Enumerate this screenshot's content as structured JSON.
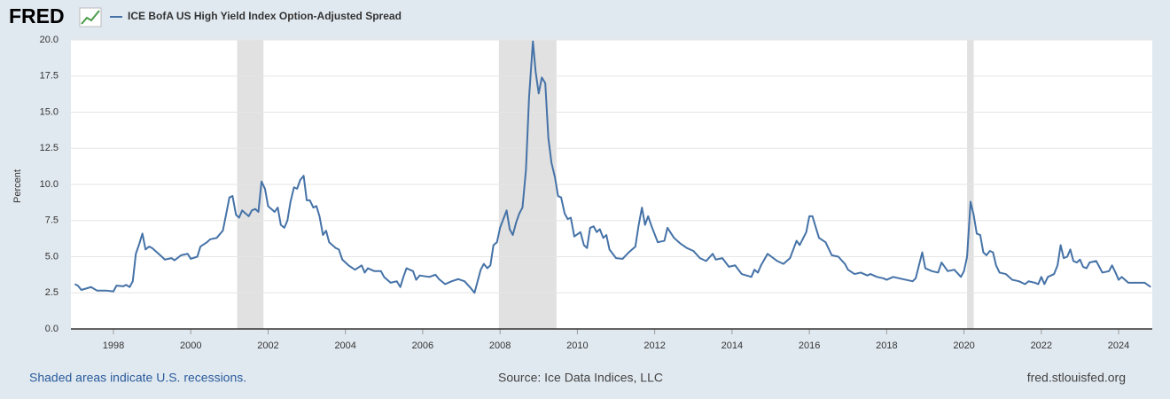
{
  "logo": "FRED",
  "footer": {
    "note": "Shaded areas indicate U.S. recessions.",
    "source": "Source: Ice Data Indices, LLC",
    "site": "fred.stlouisfed.org"
  },
  "chart_data": {
    "type": "line",
    "y_label": "Percent",
    "series": [
      {
        "name": "ICE BofA US High Yield Index Option-Adjusted Spread",
        "color": "#4572a7",
        "x": [
          1997.0,
          1997.08,
          1997.17,
          1997.42,
          1997.58,
          1997.83,
          1998.0,
          1998.08,
          1998.25,
          1998.33,
          1998.42,
          1998.5,
          1998.58,
          1998.67,
          1998.75,
          1998.83,
          1998.92,
          1999.0,
          1999.17,
          1999.33,
          1999.5,
          1999.58,
          1999.75,
          1999.92,
          2000.0,
          2000.17,
          2000.25,
          2000.42,
          2000.5,
          2000.67,
          2000.83,
          2000.92,
          2001.0,
          2001.08,
          2001.17,
          2001.25,
          2001.33,
          2001.5,
          2001.58,
          2001.67,
          2001.75,
          2001.83,
          2001.92,
          2002.0,
          2002.17,
          2002.25,
          2002.33,
          2002.42,
          2002.5,
          2002.58,
          2002.67,
          2002.75,
          2002.83,
          2002.92,
          2003.0,
          2003.08,
          2003.17,
          2003.25,
          2003.33,
          2003.42,
          2003.5,
          2003.58,
          2003.75,
          2003.83,
          2003.92,
          2004.08,
          2004.25,
          2004.42,
          2004.5,
          2004.58,
          2004.75,
          2004.92,
          2005.0,
          2005.17,
          2005.33,
          2005.42,
          2005.5,
          2005.58,
          2005.75,
          2005.83,
          2005.92,
          2006.17,
          2006.33,
          2006.42,
          2006.58,
          2006.75,
          2006.92,
          2007.08,
          2007.25,
          2007.34,
          2007.5,
          2007.58,
          2007.67,
          2007.75,
          2007.83,
          2007.92,
          2008.0,
          2008.17,
          2008.25,
          2008.33,
          2008.42,
          2008.5,
          2008.58,
          2008.67,
          2008.75,
          2008.85,
          2008.92,
          2009.0,
          2009.08,
          2009.17,
          2009.25,
          2009.33,
          2009.42,
          2009.5,
          2009.58,
          2009.67,
          2009.75,
          2009.83,
          2009.92,
          2010.08,
          2010.17,
          2010.25,
          2010.33,
          2010.42,
          2010.5,
          2010.58,
          2010.67,
          2010.75,
          2010.83,
          2011.0,
          2011.17,
          2011.33,
          2011.5,
          2011.58,
          2011.67,
          2011.75,
          2011.83,
          2011.92,
          2012.08,
          2012.25,
          2012.33,
          2012.5,
          2012.67,
          2012.83,
          2013.0,
          2013.17,
          2013.33,
          2013.5,
          2013.58,
          2013.75,
          2013.92,
          2014.08,
          2014.25,
          2014.5,
          2014.58,
          2014.67,
          2014.75,
          2014.92,
          2015.17,
          2015.33,
          2015.5,
          2015.67,
          2015.75,
          2015.92,
          2016.0,
          2016.08,
          2016.17,
          2016.25,
          2016.42,
          2016.58,
          2016.75,
          2016.92,
          2017.0,
          2017.17,
          2017.33,
          2017.5,
          2017.58,
          2017.75,
          2017.92,
          2018.0,
          2018.17,
          2018.33,
          2018.5,
          2018.67,
          2018.75,
          2018.92,
          2019.0,
          2019.17,
          2019.33,
          2019.42,
          2019.58,
          2019.75,
          2019.92,
          2020.0,
          2020.08,
          2020.17,
          2020.25,
          2020.33,
          2020.42,
          2020.5,
          2020.58,
          2020.67,
          2020.75,
          2020.83,
          2020.92,
          2021.08,
          2021.25,
          2021.42,
          2021.58,
          2021.67,
          2021.83,
          2021.92,
          2022.0,
          2022.08,
          2022.17,
          2022.33,
          2022.42,
          2022.5,
          2022.58,
          2022.67,
          2022.75,
          2022.83,
          2022.92,
          2023.0,
          2023.08,
          2023.17,
          2023.25,
          2023.42,
          2023.58,
          2023.75,
          2023.83,
          2023.92,
          2024.0,
          2024.08,
          2024.25,
          2024.5,
          2024.67,
          2024.83
        ],
        "values": [
          3.1,
          3.0,
          2.7,
          2.9,
          2.65,
          2.65,
          2.6,
          3.0,
          2.95,
          3.05,
          2.9,
          3.3,
          5.2,
          5.9,
          6.6,
          5.5,
          5.7,
          5.6,
          5.2,
          4.8,
          4.9,
          4.75,
          5.1,
          5.2,
          4.85,
          5.0,
          5.7,
          6.0,
          6.2,
          6.3,
          6.8,
          8.0,
          9.1,
          9.2,
          7.9,
          7.7,
          8.2,
          7.8,
          8.2,
          8.3,
          8.1,
          10.2,
          9.7,
          8.5,
          8.1,
          8.4,
          7.2,
          7.0,
          7.5,
          8.8,
          9.8,
          9.7,
          10.3,
          10.6,
          8.9,
          8.9,
          8.4,
          8.5,
          7.8,
          6.5,
          6.8,
          6.0,
          5.6,
          5.5,
          4.8,
          4.4,
          4.1,
          4.4,
          3.9,
          4.2,
          4.0,
          4.0,
          3.6,
          3.2,
          3.3,
          2.9,
          3.6,
          4.2,
          4.0,
          3.4,
          3.7,
          3.6,
          3.75,
          3.45,
          3.1,
          3.3,
          3.45,
          3.3,
          2.8,
          2.5,
          4.1,
          4.5,
          4.2,
          4.4,
          5.8,
          6.0,
          7.0,
          8.2,
          6.9,
          6.5,
          7.4,
          8.0,
          8.4,
          11.0,
          16.0,
          19.9,
          17.8,
          16.3,
          17.4,
          17.0,
          13.2,
          11.5,
          10.5,
          9.2,
          9.1,
          8.0,
          7.6,
          7.7,
          6.4,
          6.7,
          5.8,
          5.6,
          7.0,
          7.1,
          6.7,
          6.9,
          6.3,
          6.5,
          5.5,
          4.9,
          4.85,
          5.3,
          5.7,
          7.1,
          8.4,
          7.2,
          7.8,
          7.1,
          6.0,
          6.1,
          7.0,
          6.3,
          5.9,
          5.6,
          5.4,
          4.9,
          4.7,
          5.2,
          4.8,
          4.9,
          4.3,
          4.4,
          3.8,
          3.6,
          4.1,
          3.9,
          4.4,
          5.2,
          4.7,
          4.5,
          4.9,
          6.1,
          5.8,
          6.7,
          7.8,
          7.8,
          7.0,
          6.3,
          6.0,
          5.1,
          5.0,
          4.5,
          4.1,
          3.8,
          3.9,
          3.7,
          3.8,
          3.6,
          3.5,
          3.4,
          3.6,
          3.5,
          3.4,
          3.3,
          3.5,
          5.3,
          4.2,
          4.0,
          3.9,
          4.6,
          4.0,
          4.1,
          3.6,
          4.0,
          5.0,
          8.8,
          7.9,
          6.6,
          6.5,
          5.3,
          5.1,
          5.4,
          5.3,
          4.4,
          3.9,
          3.8,
          3.4,
          3.3,
          3.1,
          3.3,
          3.2,
          3.1,
          3.6,
          3.1,
          3.6,
          3.8,
          4.4,
          5.8,
          4.9,
          5.0,
          5.5,
          4.7,
          4.6,
          4.8,
          4.3,
          4.2,
          4.6,
          4.7,
          3.9,
          4.0,
          4.4,
          3.9,
          3.4,
          3.6,
          3.2,
          3.2,
          3.2,
          2.9
        ]
      }
    ],
    "recessions": [
      {
        "start": 2001.2,
        "end": 2001.88
      },
      {
        "start": 2007.97,
        "end": 2009.46
      },
      {
        "start": 2020.08,
        "end": 2020.25
      }
    ],
    "recession_color": "#e1e1e1",
    "xlim": [
      1996.9,
      2024.87
    ],
    "xticks": [
      1998,
      2000,
      2002,
      2004,
      2006,
      2008,
      2010,
      2012,
      2014,
      2016,
      2018,
      2020,
      2022,
      2024
    ],
    "ylim": [
      0,
      20
    ],
    "yticks": [
      {
        "value": 0,
        "label": "0.0"
      },
      {
        "value": 2.5,
        "label": "2.5"
      },
      {
        "value": 5,
        "label": "5.0"
      },
      {
        "value": 7.5,
        "label": "7.5"
      },
      {
        "value": 10,
        "label": "10.0"
      },
      {
        "value": 12.5,
        "label": "12.5"
      },
      {
        "value": 15,
        "label": "15.0"
      },
      {
        "value": 17.5,
        "label": "17.5"
      },
      {
        "value": 20,
        "label": "20.0"
      }
    ],
    "grid": true
  }
}
